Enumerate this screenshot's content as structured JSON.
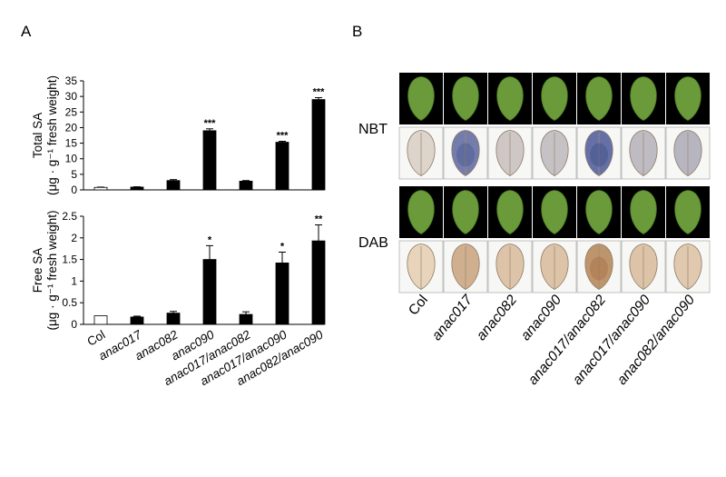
{
  "panels": {
    "a": "A",
    "b": "B"
  },
  "genotypes": [
    "Col",
    "anac017",
    "anac082",
    "anac090",
    "anac017/anac082",
    "anac017/anac090",
    "anac082/anac090"
  ],
  "chart_data": [
    {
      "type": "bar",
      "id": "total",
      "ylabel_line1": "Total SA",
      "ylabel_line2": "(μg · g⁻¹ fresh weight)",
      "ylim": [
        0,
        35
      ],
      "yticks": [
        "0",
        "5",
        "10",
        "15",
        "20",
        "25",
        "30",
        "35"
      ],
      "categories": [
        "Col",
        "anac017",
        "anac082",
        "anac090",
        "anac017/anac082",
        "anac017/anac090",
        "anac082/anac090"
      ],
      "values": [
        0.8,
        0.9,
        3.0,
        19.0,
        2.8,
        15.3,
        29.0
      ],
      "errors": [
        0.1,
        0.1,
        0.3,
        0.6,
        0.2,
        0.3,
        0.6
      ],
      "significance": [
        "",
        "",
        "",
        "***",
        "",
        "***",
        "***"
      ]
    },
    {
      "type": "bar",
      "id": "free",
      "ylabel_line1": "Free SA",
      "ylabel_line2": "(μg · g⁻¹ fresh weight)",
      "ylim": [
        0,
        2.5
      ],
      "yticks": [
        "0",
        "0.5",
        "1",
        "1.5",
        "2",
        "2.5"
      ],
      "categories": [
        "Col",
        "anac017",
        "anac082",
        "anac090",
        "anac017/anac082",
        "anac017/anac090",
        "anac082/anac090"
      ],
      "values": [
        0.2,
        0.17,
        0.26,
        1.5,
        0.23,
        1.42,
        1.93
      ],
      "errors": [
        0.0,
        0.02,
        0.04,
        0.32,
        0.06,
        0.25,
        0.37
      ],
      "significance": [
        "",
        "",
        "",
        "*",
        "",
        "*",
        "**"
      ]
    }
  ],
  "stain_panel": {
    "rows": [
      "NBT",
      "DAB"
    ],
    "stain_level": {
      "NBT": [
        0.05,
        0.75,
        0.15,
        0.2,
        0.85,
        0.25,
        0.3
      ],
      "DAB": [
        0.1,
        0.45,
        0.25,
        0.25,
        0.7,
        0.25,
        0.2
      ]
    }
  },
  "colors": {
    "bar_col": "#ffffff",
    "bar_mutant": "#000000",
    "leaf_green": "#6a9a3a",
    "photo_bg": "#000000"
  }
}
